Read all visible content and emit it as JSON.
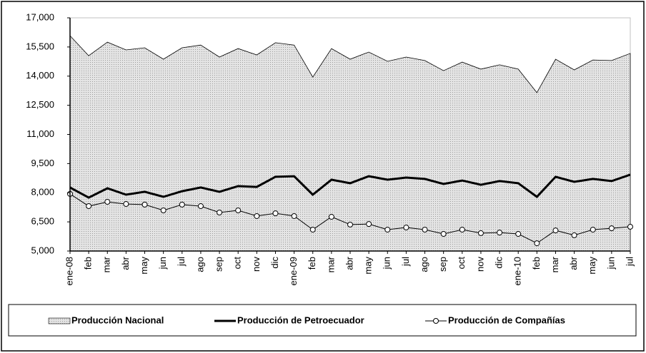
{
  "chart_data": {
    "type": "area-line",
    "categories": [
      "ene-08",
      "feb",
      "mar",
      "abr",
      "may",
      "jun",
      "jul",
      "ago",
      "sep",
      "oct",
      "nov",
      "dic",
      "ene-09",
      "feb",
      "mar",
      "abr",
      "may",
      "jun",
      "jul",
      "ago",
      "sep",
      "oct",
      "nov",
      "dic",
      "ene-10",
      "feb",
      "mar",
      "abr",
      "may",
      "jun",
      "jul"
    ],
    "series": [
      {
        "name": "Producción Nacional",
        "color": "#d9d9d9",
        "style": "area",
        "values": [
          16080,
          15050,
          15750,
          15350,
          15460,
          14870,
          15460,
          15600,
          14980,
          15420,
          15090,
          15720,
          15600,
          13950,
          15420,
          14870,
          15240,
          14760,
          14980,
          14800,
          14280,
          14720,
          14360,
          14580,
          14360,
          13150,
          14870,
          14320,
          14830,
          14800,
          15170
        ]
      },
      {
        "name": "Producción de Petroecuador",
        "color": "#000000",
        "style": "line",
        "values": [
          8270,
          7750,
          8230,
          7900,
          8050,
          7790,
          8080,
          8270,
          8050,
          8340,
          8300,
          8820,
          8850,
          7900,
          8670,
          8490,
          8850,
          8670,
          8780,
          8710,
          8450,
          8630,
          8410,
          8600,
          8490,
          7790,
          8820,
          8560,
          8710,
          8600,
          8930
        ]
      },
      {
        "name": "Producción de Compañías",
        "color": "#000000",
        "style": "line-marker",
        "values": [
          7940,
          7310,
          7530,
          7420,
          7390,
          7090,
          7390,
          7310,
          6980,
          7090,
          6800,
          6940,
          6800,
          6100,
          6760,
          6360,
          6390,
          6100,
          6210,
          6100,
          5880,
          6100,
          5920,
          5950,
          5880,
          5400,
          6060,
          5810,
          6100,
          6170,
          6250
        ]
      }
    ],
    "ylim": [
      5000,
      17000
    ],
    "yticks": [
      {
        "value": 5000,
        "label": "5,000"
      },
      {
        "value": 6500,
        "label": "6,500"
      },
      {
        "value": 8000,
        "label": "8,000"
      },
      {
        "value": 9500,
        "label": "9,500"
      },
      {
        "value": 11000,
        "label": "11,000"
      },
      {
        "value": 12500,
        "label": "12,500"
      },
      {
        "value": 14000,
        "label": "14,000"
      },
      {
        "value": 15500,
        "label": "15,500"
      },
      {
        "value": 17000,
        "label": "17,000"
      }
    ],
    "legend": "bottom"
  }
}
